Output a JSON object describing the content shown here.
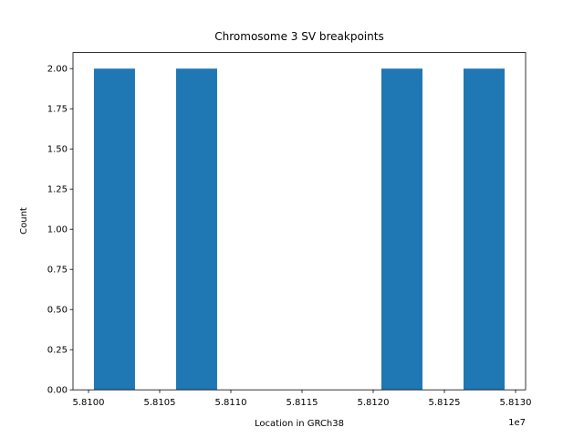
{
  "chart_data": {
    "type": "histogram",
    "title": "Chromosome 3 SV breakpoints",
    "xlabel": "Location in GRCh38",
    "ylabel": "Count",
    "x_offset_label": "1e7",
    "bins": [
      58100380,
      58103265,
      58106150,
      58109035,
      58111920,
      58114805,
      58117690,
      58120575,
      58123460,
      58126345,
      58129230
    ],
    "counts": [
      2,
      0,
      2,
      0,
      0,
      0,
      0,
      2,
      0,
      2
    ],
    "color": "#1f77b4",
    "xlim": [
      58098910,
      58130705
    ],
    "xticks": [
      {
        "value": 58100000,
        "label": "5.8100"
      },
      {
        "value": 58105000,
        "label": "5.8105"
      },
      {
        "value": 58110000,
        "label": "5.8110"
      },
      {
        "value": 58115000,
        "label": "5.8115"
      },
      {
        "value": 58120000,
        "label": "5.8120"
      },
      {
        "value": 58125000,
        "label": "5.8125"
      },
      {
        "value": 58130000,
        "label": "5.8130"
      }
    ],
    "ylim": [
      0,
      2.1
    ],
    "yticks": [
      {
        "value": 0,
        "label": "0.00"
      },
      {
        "value": 0.25,
        "label": "0.25"
      },
      {
        "value": 0.5,
        "label": "0.50"
      },
      {
        "value": 0.75,
        "label": "0.75"
      },
      {
        "value": 1,
        "label": "1.00"
      },
      {
        "value": 1.25,
        "label": "1.25"
      },
      {
        "value": 1.5,
        "label": "1.50"
      },
      {
        "value": 1.75,
        "label": "1.75"
      },
      {
        "value": 2,
        "label": "2.00"
      }
    ],
    "grid": false
  }
}
